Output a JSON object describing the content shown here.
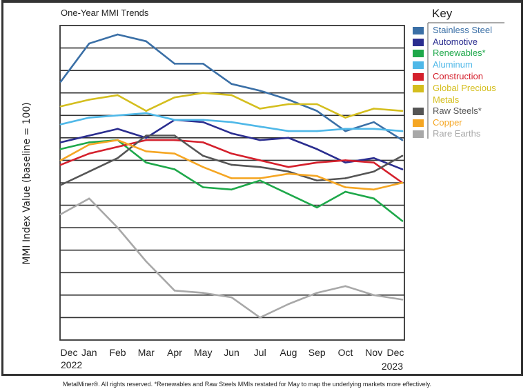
{
  "chart_data": {
    "type": "line",
    "title": "One-Year MMI Trends",
    "ylabel": "MMI Index Value (baseline = 100)",
    "xlabel": "",
    "categories": [
      "Dec",
      "Jan",
      "Feb",
      "Mar",
      "Apr",
      "May",
      "Jun",
      "Jul",
      "Aug",
      "Sep",
      "Oct",
      "Nov",
      "Dec"
    ],
    "year_labels": {
      "start": "2022",
      "end": "2023"
    },
    "ylim": [
      0,
      14
    ],
    "y_ticks_labeled": false,
    "grid": "horizontal",
    "legend_title": "Key",
    "legend_placement": "right",
    "series": [
      {
        "name": "Stainless Steel",
        "color": "#3a6fa6",
        "values": [
          11.5,
          13.2,
          13.6,
          13.3,
          12.3,
          12.3,
          11.4,
          11.1,
          10.7,
          10.2,
          9.3,
          9.7,
          8.9
        ]
      },
      {
        "name": "Automotive",
        "color": "#2a2d8f",
        "values": [
          8.8,
          9.1,
          9.4,
          9.0,
          9.8,
          9.7,
          9.2,
          8.9,
          9.0,
          8.5,
          7.9,
          8.1,
          7.6
        ]
      },
      {
        "name": "Renewables*",
        "color": "#1ea84a",
        "values": [
          8.5,
          8.8,
          8.9,
          7.9,
          7.6,
          6.8,
          6.7,
          7.1,
          6.5,
          5.9,
          6.6,
          6.3,
          5.3
        ]
      },
      {
        "name": "Aluminum",
        "color": "#4fb8e8",
        "values": [
          9.6,
          9.9,
          10.0,
          10.1,
          9.8,
          9.8,
          9.7,
          9.5,
          9.3,
          9.3,
          9.4,
          9.4,
          9.3
        ]
      },
      {
        "name": "Construction",
        "color": "#d4202c",
        "values": [
          7.8,
          8.3,
          8.6,
          8.9,
          8.9,
          8.8,
          8.3,
          8.0,
          7.7,
          7.9,
          8.0,
          7.9,
          7.0
        ]
      },
      {
        "name": "Global Precious Metals",
        "label_lines": [
          "Global Precious",
          "Metals"
        ],
        "color": "#d4be1e",
        "values": [
          10.4,
          10.7,
          10.9,
          10.2,
          10.8,
          11.0,
          10.9,
          10.3,
          10.5,
          10.5,
          9.9,
          10.3,
          10.2
        ]
      },
      {
        "name": "Raw Steels*",
        "color": "#555555",
        "values": [
          6.9,
          7.5,
          8.1,
          9.1,
          9.1,
          8.2,
          7.8,
          7.7,
          7.5,
          7.1,
          7.2,
          7.5,
          8.2
        ]
      },
      {
        "name": "Copper",
        "color": "#f5a623",
        "values": [
          8.0,
          8.7,
          8.9,
          8.4,
          8.3,
          7.7,
          7.2,
          7.2,
          7.4,
          7.3,
          6.8,
          6.7,
          7.0
        ]
      },
      {
        "name": "Rare Earths",
        "color": "#a8a8a8",
        "values": [
          5.6,
          6.3,
          5.0,
          3.5,
          2.2,
          2.1,
          1.9,
          1.0,
          1.6,
          2.1,
          2.4,
          2.0,
          1.8
        ]
      }
    ]
  },
  "footer": "MetalMiner®. All rights reserved.    *Renewables and Raw Steels MMIs restated for May to map the underlying markets more effectively."
}
